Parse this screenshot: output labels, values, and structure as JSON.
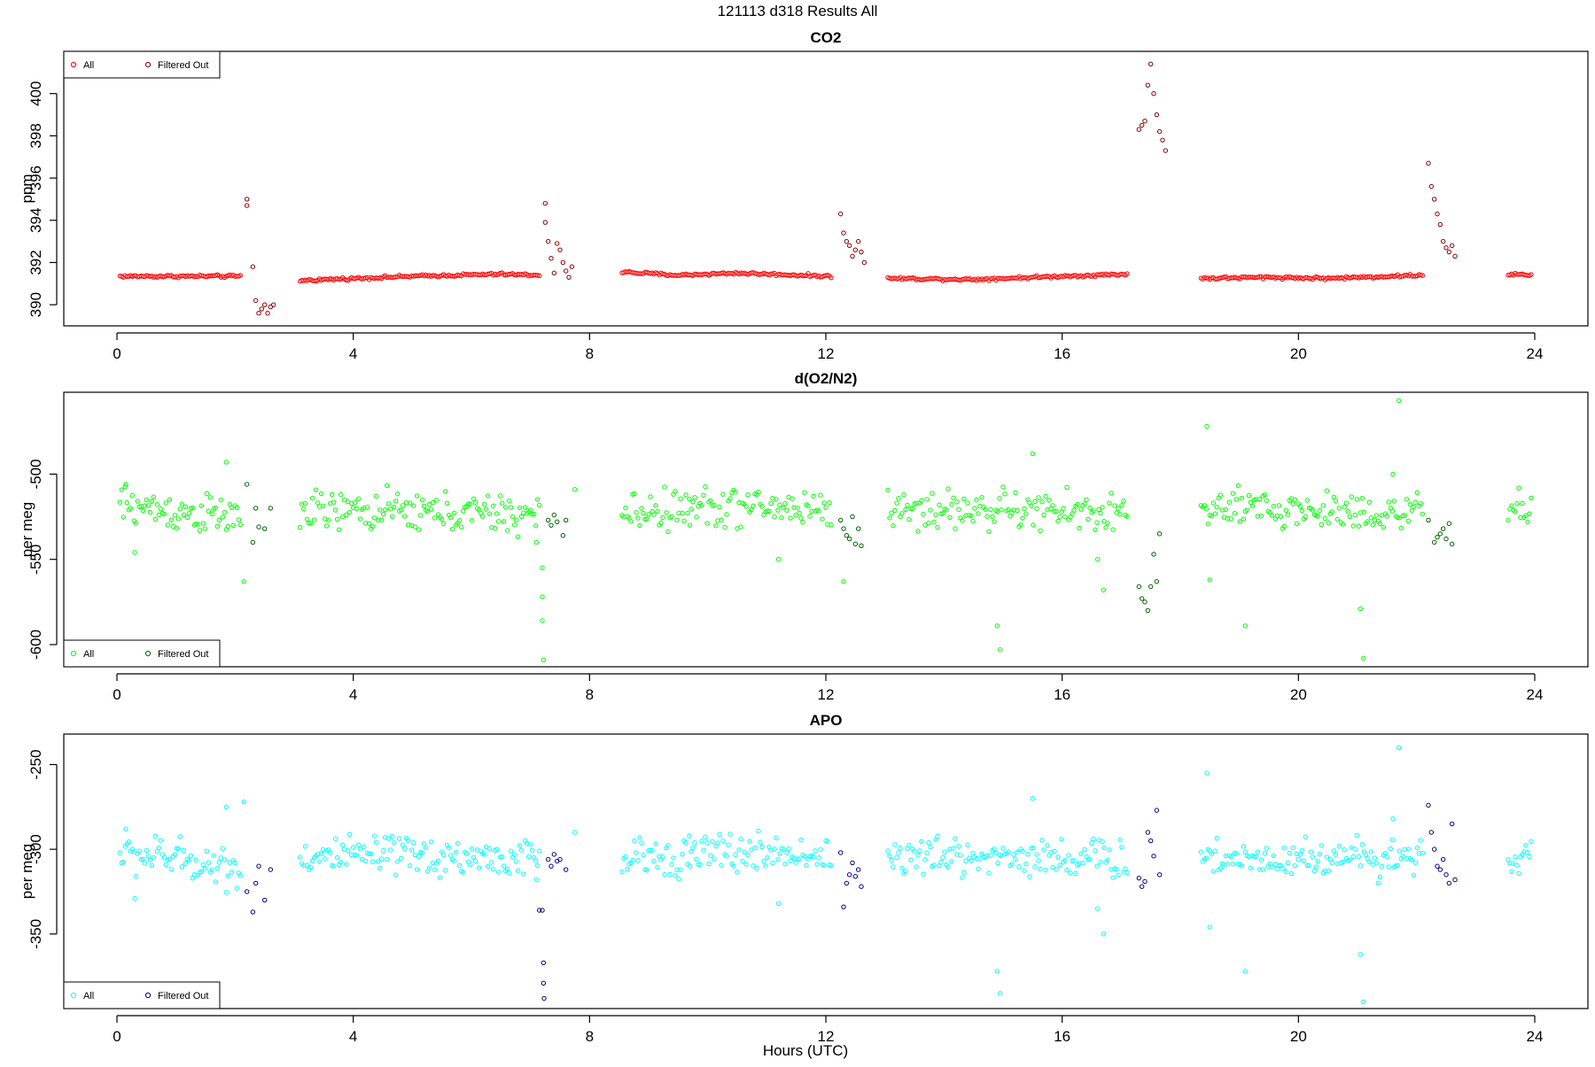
{
  "figure_title": "121113   d318   Results All",
  "x_axis_label": "Hours (UTC)",
  "colors": {
    "co2_all": "#ff0000",
    "co2_filtered": "#8b0000",
    "o2_all": "#00ff00",
    "o2_filtered": "#006400",
    "apo_all": "#00ffff",
    "apo_filtered": "#00008b"
  },
  "chart_data": [
    {
      "type": "scatter",
      "title": "CO2",
      "xlabel": "",
      "ylabel": "ppm",
      "xlim": [
        -0.9,
        24.9
      ],
      "ylim": [
        389.0,
        402.0
      ],
      "xticks": [
        0,
        4,
        8,
        12,
        16,
        20,
        24
      ],
      "yticks": [
        390,
        392,
        394,
        396,
        398,
        400
      ],
      "legend": {
        "placement": "top-left",
        "entries": [
          "All",
          "Filtered Out"
        ]
      },
      "baseline": [
        [
          0.05,
          391.35
        ],
        [
          2.1,
          391.35
        ],
        [
          3.1,
          391.15
        ],
        [
          5.0,
          391.35
        ],
        [
          6.5,
          391.45
        ],
        [
          7.15,
          391.4
        ],
        [
          8.55,
          391.55
        ],
        [
          9.5,
          391.4
        ],
        [
          10.5,
          391.5
        ],
        [
          12.1,
          391.35
        ],
        [
          13.05,
          391.25
        ],
        [
          14.5,
          391.2
        ],
        [
          16.0,
          391.35
        ],
        [
          17.1,
          391.45
        ],
        [
          18.35,
          391.25
        ],
        [
          19.5,
          391.3
        ],
        [
          20.5,
          391.25
        ],
        [
          22.1,
          391.4
        ],
        [
          23.55,
          391.45
        ],
        [
          23.95,
          391.4
        ]
      ],
      "series": [
        {
          "name": "All",
          "segments": [
            [
              0.05,
              2.1
            ],
            [
              3.1,
              7.15
            ],
            [
              8.55,
              12.1
            ],
            [
              13.05,
              17.1
            ],
            [
              18.35,
              22.1
            ],
            [
              23.55,
              23.95
            ]
          ],
          "noise": 0.05
        },
        {
          "name": "Filtered Out",
          "points": [
            [
              2.2,
              395.0
            ],
            [
              2.2,
              394.7
            ],
            [
              2.3,
              391.8
            ],
            [
              2.35,
              390.2
            ],
            [
              2.4,
              389.6
            ],
            [
              2.45,
              389.8
            ],
            [
              2.5,
              390.0
            ],
            [
              2.55,
              389.6
            ],
            [
              2.6,
              389.9
            ],
            [
              2.65,
              390.0
            ],
            [
              7.25,
              394.8
            ],
            [
              7.25,
              393.9
            ],
            [
              7.3,
              393.0
            ],
            [
              7.35,
              392.2
            ],
            [
              7.4,
              391.5
            ],
            [
              7.45,
              392.9
            ],
            [
              7.5,
              392.6
            ],
            [
              7.55,
              392.0
            ],
            [
              7.6,
              391.6
            ],
            [
              7.65,
              391.3
            ],
            [
              7.7,
              391.8
            ],
            [
              12.25,
              394.3
            ],
            [
              12.3,
              393.4
            ],
            [
              12.35,
              393.0
            ],
            [
              12.4,
              392.8
            ],
            [
              12.45,
              392.3
            ],
            [
              12.5,
              392.6
            ],
            [
              12.55,
              393.0
            ],
            [
              12.6,
              392.5
            ],
            [
              12.65,
              392.0
            ],
            [
              17.3,
              398.3
            ],
            [
              17.35,
              398.5
            ],
            [
              17.4,
              398.7
            ],
            [
              17.45,
              400.4
            ],
            [
              17.5,
              401.4
            ],
            [
              17.55,
              400.0
            ],
            [
              17.6,
              399.0
            ],
            [
              17.65,
              398.2
            ],
            [
              17.7,
              397.8
            ],
            [
              17.75,
              397.3
            ],
            [
              22.2,
              396.7
            ],
            [
              22.25,
              395.6
            ],
            [
              22.3,
              395.0
            ],
            [
              22.35,
              394.3
            ],
            [
              22.4,
              393.8
            ],
            [
              22.45,
              393.0
            ],
            [
              22.5,
              392.7
            ],
            [
              22.55,
              392.5
            ],
            [
              22.6,
              392.8
            ],
            [
              22.65,
              392.3
            ]
          ]
        }
      ]
    },
    {
      "type": "scatter",
      "title": "d(O2/N2)",
      "xlabel": "",
      "ylabel": "per meg",
      "xlim": [
        -0.9,
        24.9
      ],
      "ylim": [
        -613,
        -452
      ],
      "xticks": [
        0,
        4,
        8,
        12,
        16,
        20,
        24
      ],
      "yticks": [
        -500,
        -550,
        -600
      ],
      "legend": {
        "placement": "bottom-left",
        "entries": [
          "All",
          "Filtered Out"
        ]
      },
      "baseline": [
        [
          0.05,
          -518
        ],
        [
          1.0,
          -522
        ],
        [
          2.1,
          -526
        ],
        [
          3.1,
          -522
        ],
        [
          5.0,
          -522
        ],
        [
          7.0,
          -524
        ],
        [
          7.15,
          -524
        ],
        [
          8.55,
          -523
        ],
        [
          10.0,
          -519
        ],
        [
          12.1,
          -520
        ],
        [
          13.05,
          -521
        ],
        [
          15.0,
          -521
        ],
        [
          17.1,
          -523
        ],
        [
          18.35,
          -521
        ],
        [
          20.0,
          -521
        ],
        [
          22.1,
          -523
        ],
        [
          23.55,
          -522
        ],
        [
          23.95,
          -520
        ]
      ],
      "series": [
        {
          "name": "All",
          "segments": [
            [
              0.05,
              2.1
            ],
            [
              3.1,
              7.15
            ],
            [
              8.55,
              12.1
            ],
            [
              13.05,
              17.1
            ],
            [
              18.35,
              22.1
            ],
            [
              23.55,
              23.95
            ]
          ],
          "noise": 9,
          "outliers": [
            [
              0.15,
              -506
            ],
            [
              0.3,
              -546
            ],
            [
              1.85,
              -493
            ],
            [
              2.15,
              -563
            ],
            [
              7.2,
              -555
            ],
            [
              7.2,
              -572
            ],
            [
              7.2,
              -586
            ],
            [
              7.22,
              -609
            ],
            [
              7.1,
              -540
            ],
            [
              7.75,
              -509
            ],
            [
              9.7,
              -530
            ],
            [
              11.2,
              -550
            ],
            [
              12.3,
              -563
            ],
            [
              14.9,
              -589
            ],
            [
              14.95,
              -603
            ],
            [
              15.5,
              -488
            ],
            [
              16.7,
              -568
            ],
            [
              16.6,
              -550
            ],
            [
              18.45,
              -472
            ],
            [
              18.5,
              -562
            ],
            [
              19.1,
              -589
            ],
            [
              21.05,
              -579
            ],
            [
              21.1,
              -608
            ],
            [
              21.7,
              -457
            ],
            [
              21.6,
              -500
            ]
          ]
        },
        {
          "name": "Filtered Out",
          "points": [
            [
              2.2,
              -506
            ],
            [
              2.3,
              -540
            ],
            [
              2.35,
              -520
            ],
            [
              2.4,
              -531
            ],
            [
              2.5,
              -532
            ],
            [
              2.6,
              -520
            ],
            [
              7.3,
              -527
            ],
            [
              7.35,
              -530
            ],
            [
              7.4,
              -524
            ],
            [
              7.45,
              -528
            ],
            [
              7.55,
              -536
            ],
            [
              7.6,
              -527
            ],
            [
              12.25,
              -527
            ],
            [
              12.3,
              -532
            ],
            [
              12.35,
              -536
            ],
            [
              12.4,
              -538
            ],
            [
              12.45,
              -525
            ],
            [
              12.5,
              -541
            ],
            [
              12.55,
              -532
            ],
            [
              12.6,
              -542
            ],
            [
              17.3,
              -566
            ],
            [
              17.35,
              -573
            ],
            [
              17.4,
              -575
            ],
            [
              17.45,
              -580
            ],
            [
              17.5,
              -566
            ],
            [
              17.55,
              -547
            ],
            [
              17.6,
              -563
            ],
            [
              17.65,
              -535
            ],
            [
              22.2,
              -527
            ],
            [
              22.3,
              -540
            ],
            [
              22.35,
              -537
            ],
            [
              22.4,
              -535
            ],
            [
              22.45,
              -532
            ],
            [
              22.5,
              -538
            ],
            [
              22.55,
              -529
            ],
            [
              22.6,
              -541
            ]
          ]
        }
      ]
    },
    {
      "type": "scatter",
      "title": "APO",
      "xlabel": "Hours (UTC)",
      "ylabel": "per meg",
      "xlim": [
        -0.9,
        24.9
      ],
      "ylim": [
        -394,
        -232
      ],
      "xticks": [
        0,
        4,
        8,
        12,
        16,
        20,
        24
      ],
      "yticks": [
        -250,
        -300,
        -350
      ],
      "legend": {
        "placement": "bottom-left",
        "entries": [
          "All",
          "Filtered Out"
        ]
      },
      "baseline": [
        [
          0.05,
          -303
        ],
        [
          1.0,
          -305
        ],
        [
          2.1,
          -312
        ],
        [
          3.1,
          -305
        ],
        [
          5.0,
          -304
        ],
        [
          7.0,
          -306
        ],
        [
          7.15,
          -306
        ],
        [
          8.55,
          -306
        ],
        [
          10.0,
          -302
        ],
        [
          12.1,
          -303
        ],
        [
          13.05,
          -305
        ],
        [
          15.0,
          -304
        ],
        [
          17.1,
          -306
        ],
        [
          18.35,
          -305
        ],
        [
          20.0,
          -305
        ],
        [
          22.1,
          -304
        ],
        [
          23.55,
          -305
        ],
        [
          23.95,
          -302
        ]
      ],
      "series": [
        {
          "name": "All",
          "segments": [
            [
              0.05,
              2.1
            ],
            [
              3.1,
              7.15
            ],
            [
              8.55,
              12.1
            ],
            [
              13.05,
              17.1
            ],
            [
              18.35,
              22.1
            ],
            [
              23.55,
              23.95
            ]
          ],
          "noise": 9,
          "outliers": [
            [
              0.15,
              -288
            ],
            [
              0.3,
              -329
            ],
            [
              1.85,
              -275
            ],
            [
              2.15,
              -272
            ],
            [
              7.1,
              -318
            ],
            [
              7.75,
              -290
            ],
            [
              9.7,
              -310
            ],
            [
              11.2,
              -332
            ],
            [
              14.9,
              -372
            ],
            [
              14.95,
              -385
            ],
            [
              15.5,
              -270
            ],
            [
              16.7,
              -350
            ],
            [
              16.6,
              -335
            ],
            [
              18.45,
              -255
            ],
            [
              18.5,
              -346
            ],
            [
              19.1,
              -372
            ],
            [
              21.05,
              -362
            ],
            [
              21.1,
              -390
            ],
            [
              21.7,
              -240
            ],
            [
              21.6,
              -282
            ]
          ]
        },
        {
          "name": "Filtered Out",
          "points": [
            [
              2.2,
              -325
            ],
            [
              2.3,
              -337
            ],
            [
              2.35,
              -320
            ],
            [
              2.4,
              -310
            ],
            [
              2.5,
              -330
            ],
            [
              2.6,
              -312
            ],
            [
              7.15,
              -336
            ],
            [
              7.2,
              -336
            ],
            [
              7.22,
              -367
            ],
            [
              7.22,
              -379
            ],
            [
              7.23,
              -388
            ],
            [
              7.3,
              -306
            ],
            [
              7.35,
              -310
            ],
            [
              7.4,
              -303
            ],
            [
              7.45,
              -307
            ],
            [
              7.5,
              -306
            ],
            [
              7.6,
              -312
            ],
            [
              12.25,
              -302
            ],
            [
              12.3,
              -334
            ],
            [
              12.35,
              -320
            ],
            [
              12.4,
              -315
            ],
            [
              12.45,
              -308
            ],
            [
              12.5,
              -316
            ],
            [
              12.55,
              -312
            ],
            [
              12.6,
              -322
            ],
            [
              17.3,
              -317
            ],
            [
              17.35,
              -322
            ],
            [
              17.4,
              -319
            ],
            [
              17.45,
              -290
            ],
            [
              17.5,
              -295
            ],
            [
              17.55,
              -304
            ],
            [
              17.6,
              -277
            ],
            [
              17.65,
              -315
            ],
            [
              22.2,
              -274
            ],
            [
              22.25,
              -290
            ],
            [
              22.3,
              -300
            ],
            [
              22.35,
              -310
            ],
            [
              22.4,
              -312
            ],
            [
              22.45,
              -306
            ],
            [
              22.5,
              -315
            ],
            [
              22.55,
              -320
            ],
            [
              22.6,
              -285
            ],
            [
              22.65,
              -318
            ]
          ]
        }
      ]
    }
  ]
}
